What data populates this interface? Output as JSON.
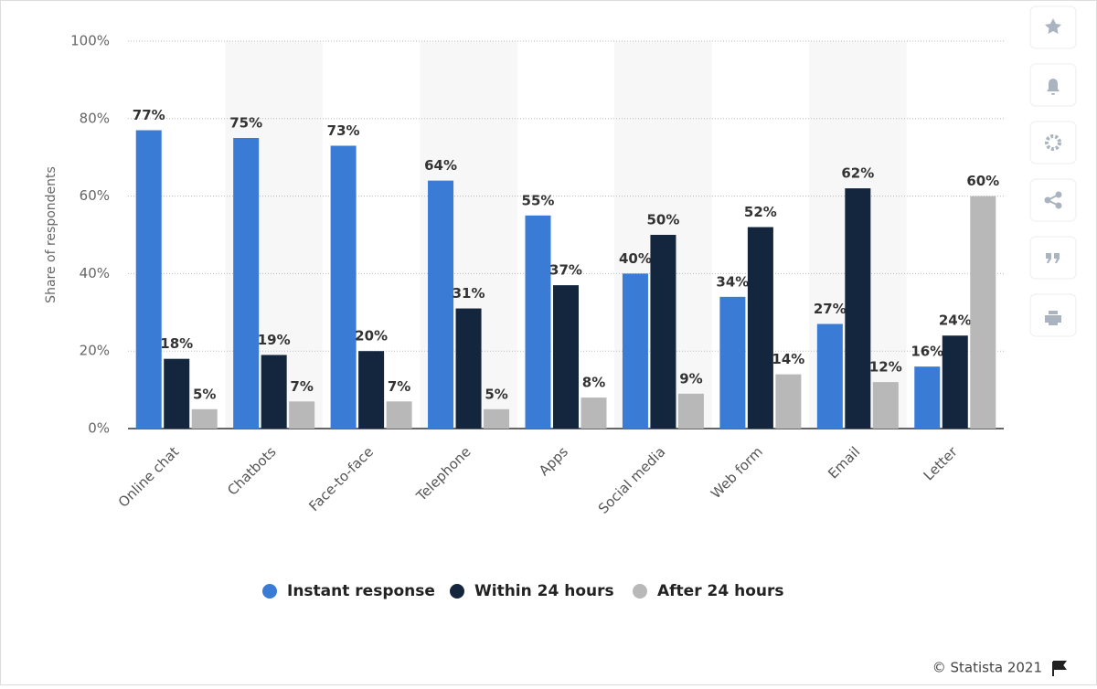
{
  "chart_data": {
    "type": "bar",
    "ylabel": "Share of respondents",
    "categories": [
      "Online chat",
      "Chatbots",
      "Face-to-face",
      "Telephone",
      "Apps",
      "Social media",
      "Web form",
      "Email",
      "Letter"
    ],
    "series": [
      {
        "name": "Instant response",
        "color": "#3a7bd5",
        "values": [
          77,
          75,
          73,
          64,
          55,
          40,
          34,
          27,
          16
        ],
        "value_labels": [
          "77%",
          "75%",
          "73%",
          "64%",
          "55%",
          "40%",
          "34%",
          "27%",
          "16%"
        ]
      },
      {
        "name": "Within 24 hours",
        "color": "#14263d",
        "values": [
          18,
          19,
          20,
          31,
          37,
          50,
          52,
          62,
          24
        ],
        "value_labels": [
          "18%",
          "19%",
          "20%",
          "31%",
          "37%",
          "50%",
          "52%",
          "62%",
          "24%"
        ]
      },
      {
        "name": "After 24 hours",
        "color": "#b8b8b8",
        "values": [
          5,
          7,
          7,
          5,
          8,
          9,
          14,
          12,
          60
        ],
        "value_labels": [
          "5%",
          "7%",
          "7%",
          "5%",
          "8%",
          "9%",
          "14%",
          "12%",
          "60%"
        ]
      }
    ],
    "ylim": [
      0,
      100
    ],
    "yticks": [
      {
        "value": 0,
        "label": "0%"
      },
      {
        "value": 20,
        "label": "20%"
      },
      {
        "value": 40,
        "label": "40%"
      },
      {
        "value": 60,
        "label": "60%"
      },
      {
        "value": 80,
        "label": "80%"
      },
      {
        "value": 100,
        "label": "100%"
      }
    ],
    "grid": true,
    "legend": "bottom",
    "credit": "© Statista 2021"
  }
}
